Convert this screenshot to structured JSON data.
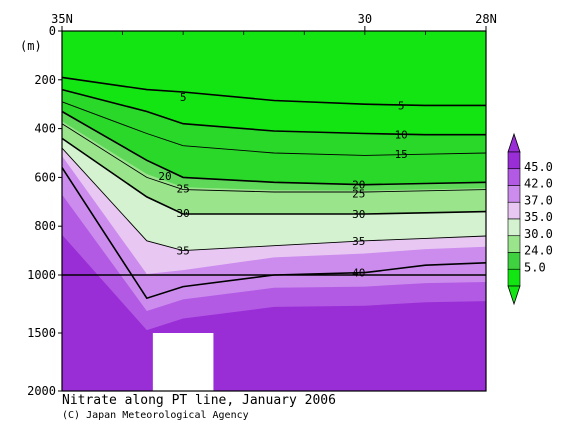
{
  "chart_data": {
    "type": "heatmap",
    "title": "Nitrate along PT line, January 2006",
    "credit": "(C) Japan Meteorological Agency",
    "ylabel": "(m)",
    "x_ticks": [
      {
        "label": "35N",
        "lat": 35
      },
      {
        "label": "30",
        "lat": 30
      },
      {
        "label": "28N",
        "lat": 28
      }
    ],
    "xlim": [
      35,
      28
    ],
    "y_ticks": [
      0,
      200,
      400,
      600,
      800,
      1000,
      1500,
      2000
    ],
    "ylim": [
      0,
      2000
    ],
    "y_scale_break": 1000,
    "colorbar": {
      "levels": [
        "45.0",
        "42.0",
        "37.0",
        "35.0",
        "30.0",
        "24.0",
        "5.0"
      ],
      "colors": [
        "#9a2ed6",
        "#b35ae4",
        "#cc8ced",
        "#e8c8f3",
        "#d4f2cf",
        "#9ae58c",
        "#3fd13f",
        "#12e512"
      ]
    },
    "bands": [
      {
        "level": 0,
        "color": "#12e512"
      },
      {
        "level": 10,
        "color": "#29d829"
      },
      {
        "level": 20,
        "color": "#5fd85a"
      },
      {
        "level": 24,
        "color": "#9ae58c"
      },
      {
        "level": 30,
        "color": "#d4f2cf"
      },
      {
        "level": 35,
        "color": "#e8c8f3"
      },
      {
        "level": 37,
        "color": "#cc8ced"
      },
      {
        "level": 42,
        "color": "#b35ae4"
      },
      {
        "level": 45,
        "color": "#9a2ed6"
      }
    ],
    "isolines": [
      {
        "level": 5,
        "depths": [
          [
            35,
            190
          ],
          [
            33.6,
            240
          ],
          [
            33,
            250
          ],
          [
            31.5,
            285
          ],
          [
            30,
            300
          ],
          [
            29,
            305
          ],
          [
            28,
            305
          ]
        ]
      },
      {
        "level": 10,
        "depths": [
          [
            35,
            240
          ],
          [
            33.6,
            330
          ],
          [
            33,
            380
          ],
          [
            31.5,
            410
          ],
          [
            30,
            420
          ],
          [
            29,
            425
          ],
          [
            28,
            425
          ]
        ]
      },
      {
        "level": 15,
        "depths": [
          [
            35,
            290
          ],
          [
            33.6,
            420
          ],
          [
            33,
            470
          ],
          [
            31.5,
            500
          ],
          [
            30,
            510
          ],
          [
            29,
            505
          ],
          [
            28,
            500
          ]
        ]
      },
      {
        "level": 20,
        "depths": [
          [
            35,
            330
          ],
          [
            33.6,
            530
          ],
          [
            33,
            600
          ],
          [
            31.5,
            620
          ],
          [
            30,
            630
          ],
          [
            29,
            625
          ],
          [
            28,
            620
          ]
        ]
      },
      {
        "level": 25,
        "depths": [
          [
            35,
            380
          ],
          [
            33.6,
            600
          ],
          [
            33,
            650
          ],
          [
            31.5,
            660
          ],
          [
            30,
            660
          ],
          [
            29,
            655
          ],
          [
            28,
            650
          ]
        ]
      },
      {
        "level": 30,
        "depths": [
          [
            35,
            440
          ],
          [
            33.6,
            680
          ],
          [
            33,
            750
          ],
          [
            31.5,
            750
          ],
          [
            30,
            750
          ],
          [
            29,
            745
          ],
          [
            28,
            740
          ]
        ]
      },
      {
        "level": 35,
        "depths": [
          [
            35,
            480
          ],
          [
            33.6,
            860
          ],
          [
            33,
            900
          ],
          [
            31.5,
            880
          ],
          [
            30,
            860
          ],
          [
            29,
            850
          ],
          [
            28,
            840
          ]
        ]
      },
      {
        "level": 40,
        "depths": [
          [
            35,
            560
          ],
          [
            33.6,
            1200
          ],
          [
            33,
            1100
          ],
          [
            31.5,
            1000
          ],
          [
            30,
            990
          ],
          [
            29,
            960
          ],
          [
            28,
            950
          ]
        ]
      }
    ],
    "contour_labels": [
      {
        "text": "5",
        "lat": 33.0,
        "depth": 270
      },
      {
        "text": "5",
        "lat": 29.4,
        "depth": 305
      },
      {
        "text": "10",
        "lat": 29.4,
        "depth": 425
      },
      {
        "text": "15",
        "lat": 29.4,
        "depth": 505
      },
      {
        "text": "20",
        "lat": 33.3,
        "depth": 595
      },
      {
        "text": "20",
        "lat": 30.1,
        "depth": 630
      },
      {
        "text": "25",
        "lat": 33.0,
        "depth": 645
      },
      {
        "text": "25",
        "lat": 30.1,
        "depth": 665
      },
      {
        "text": "30",
        "lat": 33.0,
        "depth": 745
      },
      {
        "text": "30",
        "lat": 30.1,
        "depth": 750
      },
      {
        "text": "35",
        "lat": 33.0,
        "depth": 900
      },
      {
        "text": "35",
        "lat": 30.1,
        "depth": 860
      },
      {
        "text": "40",
        "lat": 30.1,
        "depth": 990
      }
    ],
    "no_data_region": {
      "lat": [
        33.5,
        32.5
      ],
      "depth": [
        1500,
        2000
      ]
    }
  }
}
